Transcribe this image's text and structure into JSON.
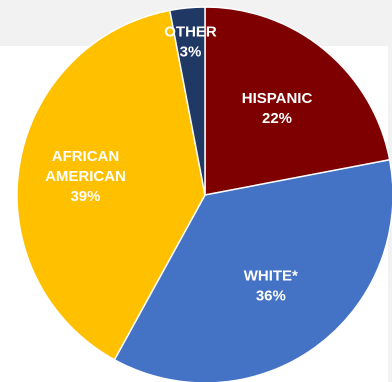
{
  "chart_data": {
    "type": "pie",
    "title": "",
    "start_angle_deg": 0,
    "direction": "clockwise",
    "slices": [
      {
        "label_lines": [
          "HISPANIC"
        ],
        "percent_label": "22%",
        "value": 22,
        "color": "#7f0000"
      },
      {
        "label_lines": [
          "WHITE*"
        ],
        "percent_label": "36%",
        "value": 36,
        "color": "#4472c4"
      },
      {
        "label_lines": [
          "AFRICAN",
          "AMERICAN"
        ],
        "percent_label": "39%",
        "value": 39,
        "color": "#ffc000"
      },
      {
        "label_lines": [
          "OTHER"
        ],
        "percent_label": "3%",
        "value": 3,
        "color": "#1f3864"
      }
    ]
  }
}
